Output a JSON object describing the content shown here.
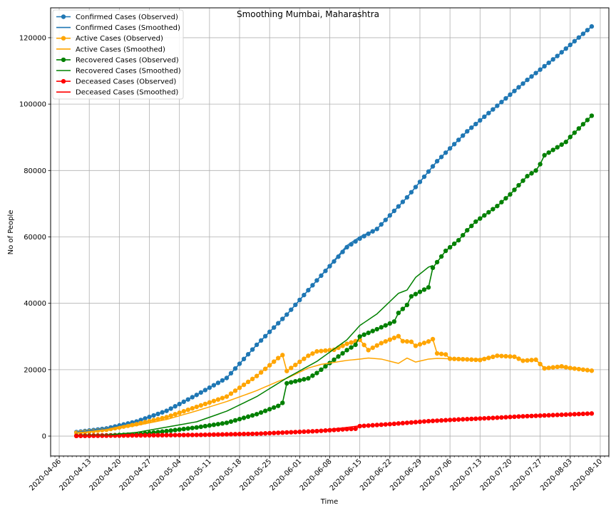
{
  "chart_data": {
    "type": "line",
    "title": "Smoothing Mumbai, Maharashtra",
    "xlabel": "Time",
    "ylabel": "No of People",
    "x_start": "2020-04-10",
    "x_end": "2020-08-08",
    "xlim": [
      "2020-04-04",
      "2020-08-12"
    ],
    "ylim": [
      -6000,
      129000
    ],
    "x_ticks": [
      "2020-04-06",
      "2020-04-13",
      "2020-04-20",
      "2020-04-27",
      "2020-05-04",
      "2020-05-11",
      "2020-05-18",
      "2020-05-25",
      "2020-06-01",
      "2020-06-08",
      "2020-06-15",
      "2020-06-22",
      "2020-06-29",
      "2020-07-06",
      "2020-07-13",
      "2020-07-20",
      "2020-07-27",
      "2020-08-03",
      "2020-08-10"
    ],
    "y_ticks": [
      0,
      20000,
      40000,
      60000,
      80000,
      100000,
      120000
    ],
    "y_tick_labels": [
      "0",
      "20000",
      "40000",
      "60000",
      "80000",
      "100000",
      "120000"
    ],
    "grid": true,
    "legend_position": "top-left",
    "series": [
      {
        "name": "Confirmed Cases (Observed)",
        "color": "#1f77b4",
        "style": "line-markers",
        "keypoints": [
          [
            "2020-04-10",
            1200
          ],
          [
            "2020-04-17",
            2300
          ],
          [
            "2020-04-24",
            4400
          ],
          [
            "2020-05-01",
            7600
          ],
          [
            "2020-05-08",
            12400
          ],
          [
            "2020-05-15",
            17500
          ],
          [
            "2020-05-22",
            27500
          ],
          [
            "2020-05-29",
            36600
          ],
          [
            "2020-06-05",
            46900
          ],
          [
            "2020-06-12",
            56900
          ],
          [
            "2020-06-15",
            59500
          ],
          [
            "2020-06-19",
            62400
          ],
          [
            "2020-06-26",
            71900
          ],
          [
            "2020-07-03",
            82800
          ],
          [
            "2020-07-10",
            91800
          ],
          [
            "2020-07-17",
            99500
          ],
          [
            "2020-07-24",
            107300
          ],
          [
            "2020-07-31",
            114500
          ],
          [
            "2020-08-08",
            123400
          ]
        ]
      },
      {
        "name": "Confirmed Cases (Smoothed)",
        "color": "#1f77b4",
        "style": "line",
        "keypoints": [
          [
            "2020-04-10",
            1200
          ],
          [
            "2020-04-17",
            2300
          ],
          [
            "2020-04-24",
            4400
          ],
          [
            "2020-05-01",
            7600
          ],
          [
            "2020-05-08",
            12400
          ],
          [
            "2020-05-15",
            17500
          ],
          [
            "2020-05-22",
            27500
          ],
          [
            "2020-05-29",
            36600
          ],
          [
            "2020-06-05",
            46900
          ],
          [
            "2020-06-12",
            57400
          ],
          [
            "2020-06-15",
            60000
          ],
          [
            "2020-06-19",
            62400
          ],
          [
            "2020-06-26",
            71900
          ],
          [
            "2020-07-03",
            82800
          ],
          [
            "2020-07-10",
            91800
          ],
          [
            "2020-07-17",
            99500
          ],
          [
            "2020-07-24",
            107300
          ],
          [
            "2020-07-31",
            114500
          ],
          [
            "2020-08-08",
            123400
          ]
        ]
      },
      {
        "name": "Active Cases (Observed)",
        "color": "#ffa500",
        "style": "line-markers",
        "keypoints": [
          [
            "2020-04-10",
            1000
          ],
          [
            "2020-04-17",
            1900
          ],
          [
            "2020-04-24",
            3600
          ],
          [
            "2020-05-01",
            5700
          ],
          [
            "2020-05-08",
            8800
          ],
          [
            "2020-05-15",
            11900
          ],
          [
            "2020-05-22",
            18100
          ],
          [
            "2020-05-27",
            23500
          ],
          [
            "2020-05-28",
            24400
          ],
          [
            "2020-05-29",
            19600
          ],
          [
            "2020-06-03",
            24200
          ],
          [
            "2020-06-05",
            25500
          ],
          [
            "2020-06-09",
            26000
          ],
          [
            "2020-06-12",
            27800
          ],
          [
            "2020-06-15",
            29000
          ],
          [
            "2020-06-17",
            25900
          ],
          [
            "2020-06-20",
            28000
          ],
          [
            "2020-06-24",
            30100
          ],
          [
            "2020-06-25",
            28600
          ],
          [
            "2020-06-27",
            28400
          ],
          [
            "2020-06-28",
            27200
          ],
          [
            "2020-07-01",
            28500
          ],
          [
            "2020-07-02",
            29200
          ],
          [
            "2020-07-03",
            24900
          ],
          [
            "2020-07-05",
            24600
          ],
          [
            "2020-07-06",
            23300
          ],
          [
            "2020-07-10",
            23100
          ],
          [
            "2020-07-13",
            22900
          ],
          [
            "2020-07-17",
            24200
          ],
          [
            "2020-07-21",
            23900
          ],
          [
            "2020-07-23",
            22700
          ],
          [
            "2020-07-26",
            23000
          ],
          [
            "2020-07-28",
            20400
          ],
          [
            "2020-08-01",
            21000
          ],
          [
            "2020-08-03",
            20500
          ],
          [
            "2020-08-08",
            19700
          ]
        ]
      },
      {
        "name": "Active Cases (Smoothed)",
        "color": "#ffa500",
        "style": "line",
        "keypoints": [
          [
            "2020-04-10",
            1000
          ],
          [
            "2020-04-17",
            1700
          ],
          [
            "2020-04-24",
            3200
          ],
          [
            "2020-05-01",
            5000
          ],
          [
            "2020-05-08",
            7600
          ],
          [
            "2020-05-15",
            10400
          ],
          [
            "2020-05-22",
            13700
          ],
          [
            "2020-05-27",
            16500
          ],
          [
            "2020-05-29",
            17400
          ],
          [
            "2020-06-03",
            20500
          ],
          [
            "2020-06-06",
            21600
          ],
          [
            "2020-06-09",
            22200
          ],
          [
            "2020-06-12",
            22800
          ],
          [
            "2020-06-15",
            23200
          ],
          [
            "2020-06-17",
            23500
          ],
          [
            "2020-06-20",
            23200
          ],
          [
            "2020-06-24",
            21900
          ],
          [
            "2020-06-26",
            23500
          ],
          [
            "2020-06-28",
            22300
          ],
          [
            "2020-07-01",
            23200
          ],
          [
            "2020-07-03",
            23400
          ],
          [
            "2020-07-06",
            23300
          ],
          [
            "2020-07-10",
            23000
          ],
          [
            "2020-07-13",
            23300
          ],
          [
            "2020-07-17",
            24100
          ],
          [
            "2020-07-21",
            23800
          ],
          [
            "2020-07-23",
            22900
          ],
          [
            "2020-07-26",
            22900
          ],
          [
            "2020-07-28",
            20600
          ],
          [
            "2020-08-01",
            20600
          ],
          [
            "2020-08-08",
            19800
          ]
        ]
      },
      {
        "name": "Recovered Cases (Observed)",
        "color": "#008000",
        "style": "line-markers",
        "keypoints": [
          [
            "2020-04-10",
            100
          ],
          [
            "2020-04-17",
            200
          ],
          [
            "2020-04-24",
            500
          ],
          [
            "2020-05-01",
            1500
          ],
          [
            "2020-05-08",
            2600
          ],
          [
            "2020-05-15",
            4000
          ],
          [
            "2020-05-22",
            6600
          ],
          [
            "2020-05-27",
            9100
          ],
          [
            "2020-05-28",
            10000
          ],
          [
            "2020-05-29",
            15900
          ],
          [
            "2020-06-03",
            17400
          ],
          [
            "2020-06-05",
            19000
          ],
          [
            "2020-06-09",
            23000
          ],
          [
            "2020-06-12",
            25900
          ],
          [
            "2020-06-14",
            27500
          ],
          [
            "2020-06-15",
            30000
          ],
          [
            "2020-06-19",
            32200
          ],
          [
            "2020-06-23",
            34500
          ],
          [
            "2020-06-24",
            37100
          ],
          [
            "2020-06-26",
            39500
          ],
          [
            "2020-06-27",
            42100
          ],
          [
            "2020-07-01",
            44800
          ],
          [
            "2020-07-02",
            50700
          ],
          [
            "2020-07-05",
            55800
          ],
          [
            "2020-07-08",
            59000
          ],
          [
            "2020-07-10",
            62000
          ],
          [
            "2020-07-12",
            64600
          ],
          [
            "2020-07-17",
            69300
          ],
          [
            "2020-07-20",
            72800
          ],
          [
            "2020-07-24",
            78300
          ],
          [
            "2020-07-26",
            80000
          ],
          [
            "2020-07-27",
            81900
          ],
          [
            "2020-07-28",
            84600
          ],
          [
            "2020-08-02",
            88600
          ],
          [
            "2020-08-03",
            90100
          ],
          [
            "2020-08-08",
            96500
          ]
        ]
      },
      {
        "name": "Recovered Cases (Smoothed)",
        "color": "#008000",
        "style": "line",
        "keypoints": [
          [
            "2020-04-10",
            100
          ],
          [
            "2020-04-17",
            300
          ],
          [
            "2020-04-24",
            1100
          ],
          [
            "2020-05-01",
            2700
          ],
          [
            "2020-05-08",
            4300
          ],
          [
            "2020-05-15",
            7500
          ],
          [
            "2020-05-22",
            11900
          ],
          [
            "2020-05-29",
            17500
          ],
          [
            "2020-06-05",
            22500
          ],
          [
            "2020-06-12",
            29000
          ],
          [
            "2020-06-15",
            33300
          ],
          [
            "2020-06-19",
            36800
          ],
          [
            "2020-06-24",
            43000
          ],
          [
            "2020-06-26",
            44000
          ],
          [
            "2020-06-28",
            47800
          ],
          [
            "2020-07-01",
            50900
          ],
          [
            "2020-07-02",
            51400
          ]
        ]
      },
      {
        "name": "Deceased Cases (Observed)",
        "color": "#ff0000",
        "style": "line-markers",
        "keypoints": [
          [
            "2020-04-10",
            50
          ],
          [
            "2020-04-24",
            200
          ],
          [
            "2020-05-08",
            350
          ],
          [
            "2020-05-22",
            700
          ],
          [
            "2020-05-29",
            1100
          ],
          [
            "2020-06-05",
            1500
          ],
          [
            "2020-06-12",
            2100
          ],
          [
            "2020-06-14",
            2200
          ],
          [
            "2020-06-15",
            3000
          ],
          [
            "2020-06-22",
            3600
          ],
          [
            "2020-07-01",
            4500
          ],
          [
            "2020-07-08",
            5000
          ],
          [
            "2020-07-15",
            5400
          ],
          [
            "2020-07-22",
            5900
          ],
          [
            "2020-08-08",
            6800
          ]
        ]
      },
      {
        "name": "Deceased Cases (Smoothed)",
        "color": "#ff0000",
        "style": "line",
        "keypoints": [
          [
            "2020-04-10",
            50
          ],
          [
            "2020-04-24",
            200
          ],
          [
            "2020-05-08",
            350
          ],
          [
            "2020-05-22",
            700
          ],
          [
            "2020-05-29",
            1100
          ],
          [
            "2020-06-05",
            1600
          ],
          [
            "2020-06-12",
            2600
          ],
          [
            "2020-06-15",
            3100
          ]
        ]
      }
    ]
  }
}
